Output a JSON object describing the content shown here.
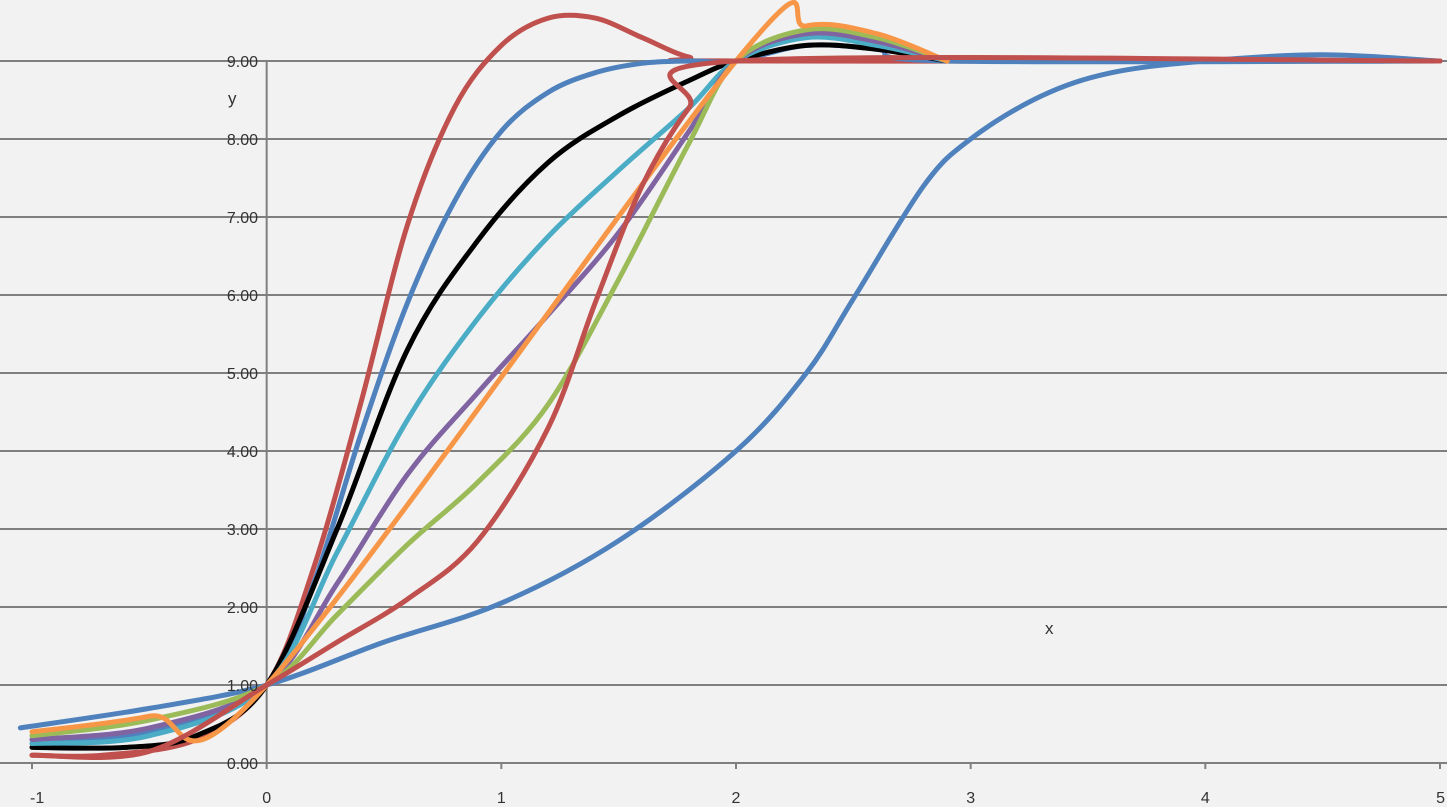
{
  "chart_data": {
    "type": "line",
    "title": "",
    "xlabel": "x",
    "ylabel": "y",
    "xlim": [
      -1,
      5
    ],
    "ylim": [
      0,
      9
    ],
    "grid": true,
    "x_ticks": [
      "-1",
      "0",
      "1",
      "2",
      "3",
      "4",
      "5"
    ],
    "y_ticks": [
      "0.00",
      "1.00",
      "2.00",
      "3.00",
      "4.00",
      "5.00",
      "6.00",
      "7.00",
      "8.00",
      "9.00"
    ],
    "x_tick_values": [
      -1,
      0,
      1,
      2,
      3,
      4,
      5
    ],
    "y_tick_values": [
      0,
      1,
      2,
      3,
      4,
      5,
      6,
      7,
      8,
      9
    ],
    "series": [
      {
        "color": "#4f81bd",
        "x": [
          -1.05,
          -0.5,
          0,
          0.5,
          1.0,
          1.5,
          2.0,
          2.3,
          2.5,
          2.8,
          3.0,
          3.3,
          3.6,
          4.0,
          4.5,
          5.0
        ],
        "y": [
          0.45,
          0.7,
          1.0,
          1.55,
          2.05,
          2.85,
          4.0,
          5.0,
          5.95,
          7.4,
          8.0,
          8.55,
          8.85,
          9.0,
          9.08,
          9.0
        ]
      },
      {
        "color": "#c0504d",
        "x": [
          -1.0,
          -0.7,
          -0.3,
          0,
          0.2,
          0.4,
          0.6,
          0.8,
          1.0,
          1.2,
          1.4,
          1.6,
          1.8,
          2.0,
          5.0
        ],
        "y": [
          0.1,
          0.1,
          0.3,
          1.0,
          2.5,
          4.6,
          6.9,
          8.4,
          9.2,
          9.55,
          9.55,
          9.3,
          9.05,
          9.0,
          9.0
        ]
      },
      {
        "color": "#4f81bd",
        "x": [
          -1.0,
          -0.5,
          0,
          0.2,
          0.4,
          0.6,
          0.8,
          1.0,
          1.2,
          1.4,
          1.6,
          1.8,
          2.0,
          2.3,
          2.6,
          2.9,
          5.0
        ],
        "y": [
          0.3,
          0.4,
          1.0,
          2.3,
          4.2,
          5.9,
          7.2,
          8.1,
          8.6,
          8.85,
          8.97,
          9.0,
          9.0,
          9.2,
          9.15,
          9.0,
          9.0
        ]
      },
      {
        "color": "#000000",
        "x": [
          -1.0,
          -0.6,
          -0.3,
          0,
          0.3,
          0.6,
          0.9,
          1.2,
          1.5,
          1.8,
          2.0,
          2.3,
          2.6,
          2.9
        ],
        "y": [
          0.2,
          0.2,
          0.35,
          1.0,
          3.0,
          5.3,
          6.7,
          7.7,
          8.3,
          8.75,
          9.0,
          9.2,
          9.15,
          9.0
        ]
      },
      {
        "color": "#4bacc6",
        "x": [
          -1.0,
          -0.5,
          0,
          0.3,
          0.6,
          0.9,
          1.2,
          1.5,
          1.8,
          2.0,
          2.3,
          2.6,
          2.9
        ],
        "y": [
          0.25,
          0.35,
          1.0,
          2.7,
          4.4,
          5.7,
          6.75,
          7.6,
          8.4,
          9.0,
          9.3,
          9.2,
          9.0
        ]
      },
      {
        "color": "#8064a2",
        "x": [
          -1.0,
          -0.5,
          0,
          0.3,
          0.6,
          0.9,
          1.2,
          1.5,
          1.8,
          2.0,
          2.3,
          2.6,
          2.9
        ],
        "y": [
          0.3,
          0.45,
          1.0,
          2.3,
          3.7,
          4.75,
          5.75,
          6.8,
          8.1,
          9.0,
          9.35,
          9.25,
          9.0
        ]
      },
      {
        "color": "#9bbb59",
        "x": [
          -1.0,
          -0.5,
          0,
          0.3,
          0.6,
          0.9,
          1.2,
          1.5,
          1.8,
          2.0,
          2.3,
          2.6,
          2.9
        ],
        "y": [
          0.35,
          0.55,
          1.0,
          1.9,
          2.8,
          3.6,
          4.6,
          6.2,
          7.95,
          9.0,
          9.4,
          9.3,
          9.0
        ]
      },
      {
        "color": "#f79646",
        "x": [
          -1.0,
          -0.5,
          0,
          2.0,
          2.3,
          2.6,
          2.9
        ],
        "y": [
          0.4,
          0.6,
          1.0,
          9.0,
          9.45,
          9.35,
          9.0
        ]
      },
      {
        "color": "#c0504d",
        "x": [
          -1.0,
          -0.5,
          0,
          0.3,
          0.6,
          0.9,
          1.2,
          1.4,
          1.6,
          1.8,
          2.0,
          5.0
        ],
        "y": [
          0.1,
          0.15,
          1.0,
          1.55,
          2.1,
          2.85,
          4.3,
          5.9,
          7.4,
          8.4,
          9.0,
          9.0
        ]
      }
    ]
  }
}
